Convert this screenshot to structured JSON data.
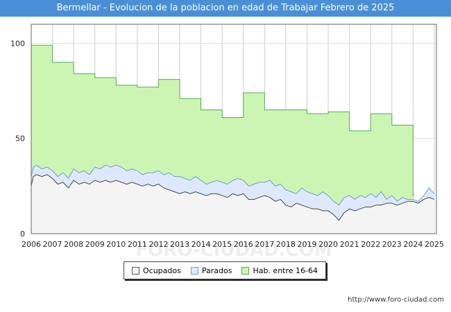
{
  "title": "Bermellar - Evolucion de la poblacion en edad de Trabajar Febrero de 2025",
  "source": "http://www.foro-ciudad.com",
  "watermark": "FORO-CIUDAD.COM",
  "chart_data": {
    "type": "area",
    "xlim": [
      2006,
      2025.1
    ],
    "ylim": [
      0,
      110
    ],
    "x_ticks": [
      "2006",
      "2007",
      "2008",
      "2009",
      "2010",
      "2011",
      "2012",
      "2013",
      "2014",
      "2015",
      "2016",
      "2017",
      "2018",
      "2019",
      "2020",
      "2021",
      "2022",
      "2023",
      "2024",
      "2025"
    ],
    "y_ticks": [
      "0",
      "50",
      "100"
    ],
    "grid": true,
    "legend_position": "bottom",
    "series": [
      {
        "name": "Hab. entre 16-64",
        "color": "#ccf5b3",
        "line": "#55aa55",
        "step": true,
        "x": [
          2006,
          2007,
          2008,
          2009,
          2010,
          2011,
          2012,
          2013,
          2014,
          2015,
          2016,
          2017,
          2018,
          2019,
          2020,
          2021,
          2022,
          2023,
          2024
        ],
        "values": [
          99,
          90,
          84,
          82,
          78,
          77,
          81,
          71,
          65,
          61,
          74,
          65,
          65,
          63,
          64,
          54,
          63,
          57,
          20
        ]
      },
      {
        "name": "Parados",
        "color": "#dde9fb",
        "line": "#7799cc",
        "x": [
          2006,
          2006.1,
          2006.25,
          2006.5,
          2006.75,
          2007,
          2007.25,
          2007.5,
          2007.75,
          2008,
          2008.25,
          2008.5,
          2008.75,
          2009,
          2009.25,
          2009.5,
          2009.75,
          2010,
          2010.25,
          2010.5,
          2010.75,
          2011,
          2011.25,
          2011.5,
          2011.75,
          2012,
          2012.25,
          2012.5,
          2012.75,
          2013,
          2013.25,
          2013.5,
          2013.75,
          2014,
          2014.25,
          2014.5,
          2014.75,
          2015,
          2015.25,
          2015.5,
          2015.75,
          2016,
          2016.25,
          2016.5,
          2016.75,
          2017,
          2017.25,
          2017.5,
          2017.75,
          2018,
          2018.25,
          2018.5,
          2018.75,
          2019,
          2019.25,
          2019.5,
          2019.75,
          2020,
          2020.25,
          2020.5,
          2020.75,
          2021,
          2021.25,
          2021.5,
          2021.75,
          2022,
          2022.25,
          2022.5,
          2022.75,
          2023,
          2023.25,
          2023.5,
          2023.75,
          2024,
          2024.25,
          2024.5,
          2024.75,
          2025
        ],
        "values": [
          30,
          35,
          36,
          34,
          35,
          33,
          30,
          32,
          29,
          34,
          32,
          33,
          31,
          35,
          34,
          36,
          35,
          36,
          35,
          33,
          34,
          33,
          31,
          32,
          32,
          33,
          31,
          32,
          30,
          30,
          29,
          28,
          30,
          28,
          26,
          27,
          28,
          27,
          26,
          28,
          29,
          28,
          25,
          26,
          27,
          27,
          28,
          25,
          26,
          23,
          22,
          21,
          24,
          22,
          21,
          20,
          22,
          20,
          17,
          15,
          19,
          20,
          18,
          20,
          19,
          21,
          19,
          22,
          18,
          20,
          17,
          19,
          18,
          18,
          17,
          20,
          24,
          21
        ]
      },
      {
        "name": "Ocupados",
        "color": "#f4f4f4",
        "line": "#444444",
        "x": [
          2006,
          2006.1,
          2006.25,
          2006.5,
          2006.75,
          2007,
          2007.25,
          2007.5,
          2007.75,
          2008,
          2008.25,
          2008.5,
          2008.75,
          2009,
          2009.25,
          2009.5,
          2009.75,
          2010,
          2010.25,
          2010.5,
          2010.75,
          2011,
          2011.25,
          2011.5,
          2011.75,
          2012,
          2012.25,
          2012.5,
          2012.75,
          2013,
          2013.25,
          2013.5,
          2013.75,
          2014,
          2014.25,
          2014.5,
          2014.75,
          2015,
          2015.25,
          2015.5,
          2015.75,
          2016,
          2016.25,
          2016.5,
          2016.75,
          2017,
          2017.25,
          2017.5,
          2017.75,
          2018,
          2018.25,
          2018.5,
          2018.75,
          2019,
          2019.25,
          2019.5,
          2019.75,
          2020,
          2020.25,
          2020.5,
          2020.75,
          2021,
          2021.25,
          2021.5,
          2021.75,
          2022,
          2022.25,
          2022.5,
          2022.75,
          2023,
          2023.25,
          2023.5,
          2023.75,
          2024,
          2024.25,
          2024.5,
          2024.75,
          2025
        ],
        "values": [
          25,
          30,
          31,
          30,
          31,
          29,
          26,
          27,
          24,
          28,
          26,
          27,
          26,
          28,
          27,
          28,
          27,
          28,
          27,
          26,
          27,
          26,
          25,
          26,
          25,
          26,
          24,
          23,
          22,
          21,
          22,
          21,
          22,
          21,
          20,
          21,
          21,
          20,
          19,
          21,
          20,
          21,
          18,
          18,
          19,
          20,
          19,
          17,
          18,
          15,
          14,
          16,
          15,
          14,
          13,
          13,
          12,
          12,
          10,
          7,
          11,
          13,
          12,
          13,
          14,
          14,
          15,
          15,
          16,
          16,
          15,
          16,
          17,
          17,
          16,
          18,
          19,
          18
        ]
      }
    ]
  }
}
